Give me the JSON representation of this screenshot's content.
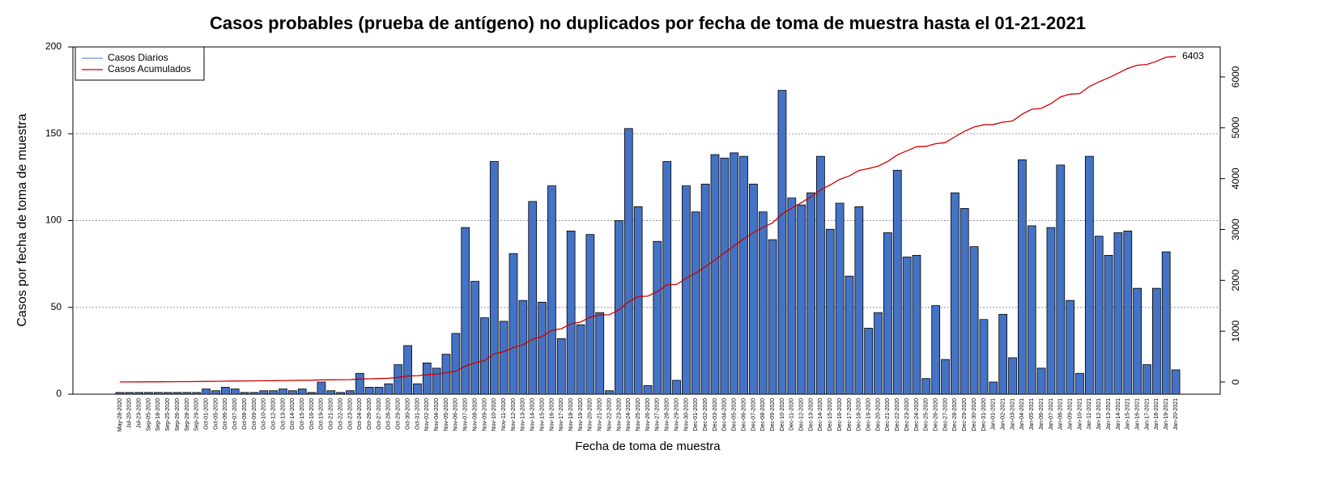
{
  "chart_data": {
    "type": "bar",
    "title": "Casos probables (prueba de antígeno) no duplicados por fecha de toma de muestra hasta el 01-21-2021",
    "x_label": "Fecha de toma de muestra",
    "y_label": "Casos por fecha de toma de muestra",
    "categories": [
      "May-28-2020",
      "Jul-20-2020",
      "Jul-23-2020",
      "Sep-05-2020",
      "Sep-18-2020",
      "Sep-25-2020",
      "Sep-26-2020",
      "Sep-28-2020",
      "Sep-29-2020",
      "Oct-01-2020",
      "Oct-05-2020",
      "Oct-06-2020",
      "Oct-07-2020",
      "Oct-08-2020",
      "Oct-09-2020",
      "Oct-10-2020",
      "Oct-12-2020",
      "Oct-13-2020",
      "Oct-14-2020",
      "Oct-15-2020",
      "Oct-16-2020",
      "Oct-19-2020",
      "Oct-21-2020",
      "Oct-22-2020",
      "Oct-23-2020",
      "Oct-24-2020",
      "Oct-26-2020",
      "Oct-27-2020",
      "Oct-28-2020",
      "Oct-29-2020",
      "Oct-30-2020",
      "Oct-31-2020",
      "Nov-02-2020",
      "Nov-04-2020",
      "Nov-05-2020",
      "Nov-06-2020",
      "Nov-07-2020",
      "Nov-08-2020",
      "Nov-09-2020",
      "Nov-10-2020",
      "Nov-11-2020",
      "Nov-12-2020",
      "Nov-13-2020",
      "Nov-14-2020",
      "Nov-15-2020",
      "Nov-16-2020",
      "Nov-17-2020",
      "Nov-18-2020",
      "Nov-19-2020",
      "Nov-20-2020",
      "Nov-21-2020",
      "Nov-22-2020",
      "Nov-23-2020",
      "Nov-24-2020",
      "Nov-25-2020",
      "Nov-26-2020",
      "Nov-27-2020",
      "Nov-28-2020",
      "Nov-29-2020",
      "Nov-30-2020",
      "Dec-01-2020",
      "Dec-02-2020",
      "Dec-03-2020",
      "Dec-04-2020",
      "Dec-05-2020",
      "Dec-06-2020",
      "Dec-07-2020",
      "Dec-08-2020",
      "Dec-09-2020",
      "Dec-10-2020",
      "Dec-11-2020",
      "Dec-12-2020",
      "Dec-13-2020",
      "Dec-14-2020",
      "Dec-15-2020",
      "Dec-16-2020",
      "Dec-17-2020",
      "Dec-18-2020",
      "Dec-19-2020",
      "Dec-20-2020",
      "Dec-21-2020",
      "Dec-22-2020",
      "Dec-23-2020",
      "Dec-24-2020",
      "Dec-25-2020",
      "Dec-26-2020",
      "Dec-27-2020",
      "Dec-28-2020",
      "Dec-29-2020",
      "Dec-30-2020",
      "Dec-31-2020",
      "Jan-01-2021",
      "Jan-02-2021",
      "Jan-03-2021",
      "Jan-04-2021",
      "Jan-05-2021",
      "Jan-06-2021",
      "Jan-07-2021",
      "Jan-08-2021",
      "Jan-09-2021",
      "Jan-10-2021",
      "Jan-11-2021",
      "Jan-12-2021",
      "Jan-13-2021",
      "Jan-14-2021",
      "Jan-15-2021",
      "Jan-16-2021",
      "Jan-17-2021",
      "Jan-18-2021",
      "Jan-19-2021",
      "Jan-20-2021"
    ],
    "series": [
      {
        "name": "Casos Diarios",
        "color": "#4472c4",
        "legend_color": "#6f8fc9",
        "values": [
          1,
          1,
          1,
          1,
          1,
          1,
          1,
          1,
          1,
          3,
          2,
          4,
          3,
          1,
          1,
          2,
          2,
          3,
          2,
          3,
          1,
          7,
          2,
          1,
          2,
          12,
          4,
          4,
          6,
          17,
          28,
          6,
          18,
          15,
          23,
          35,
          96,
          65,
          44,
          134,
          42,
          81,
          54,
          111,
          53,
          120,
          32,
          94,
          40,
          92,
          47,
          2,
          100,
          153,
          108,
          5,
          88,
          134,
          8,
          120,
          105,
          121,
          138,
          136,
          139,
          137,
          121,
          105,
          89,
          175,
          113,
          109,
          116,
          137,
          95,
          110,
          68,
          108,
          38,
          47,
          93,
          129,
          79,
          80,
          9,
          51,
          20,
          116,
          107,
          85,
          43,
          7,
          46,
          21,
          135,
          97,
          15,
          96,
          132,
          54,
          12,
          137,
          91,
          80,
          93,
          94,
          61,
          17,
          61,
          82,
          14
        ]
      },
      {
        "name": "Casos Acumulados",
        "color": "#cc0000",
        "axis": "y2",
        "type": "line",
        "values": [
          1,
          2,
          3,
          4,
          5,
          6,
          7,
          8,
          9,
          12,
          14,
          18,
          21,
          22,
          23,
          25,
          27,
          30,
          32,
          35,
          36,
          43,
          45,
          46,
          48,
          60,
          64,
          68,
          74,
          91,
          119,
          125,
          143,
          158,
          181,
          216,
          312,
          377,
          421,
          555,
          597,
          678,
          732,
          843,
          896,
          1016,
          1048,
          1142,
          1182,
          1274,
          1321,
          1323,
          1423,
          1576,
          1684,
          1689,
          1777,
          1911,
          1919,
          2039,
          2144,
          2265,
          2403,
          2539,
          2678,
          2815,
          2936,
          3041,
          3130,
          3305,
          3418,
          3527,
          3643,
          3780,
          3875,
          3985,
          4053,
          4161,
          4199,
          4246,
          4339,
          4468,
          4547,
          4627,
          4636,
          4687,
          4707,
          4823,
          4930,
          5015,
          5058,
          5065,
          5111,
          5132,
          5267,
          5364,
          5379,
          5475,
          5607,
          5661,
          5673,
          5810,
          5901,
          5981,
          6074,
          6168,
          6229,
          6246,
          6307,
          6389,
          6403
        ]
      }
    ],
    "annotations": [
      {
        "value": 6403,
        "label": "6403"
      }
    ],
    "ylim": [
      0,
      200
    ],
    "yticks": [
      0,
      50,
      100,
      150,
      200
    ],
    "y2lim": [
      -239,
      6589
    ],
    "y2ticks": [
      0,
      1000,
      2000,
      3000,
      4000,
      5000,
      6000
    ],
    "grid": true,
    "legend": "top-left"
  }
}
